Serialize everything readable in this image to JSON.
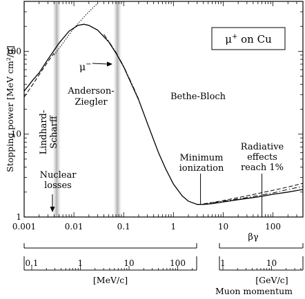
{
  "chart_data": {
    "type": "line",
    "xscale": "log",
    "yscale": "log",
    "xlim": [
      0.001,
      400
    ],
    "ylim": [
      1,
      400
    ],
    "ylabel": "Stopping power [MeV cm²/g]",
    "xlabel": "βγ",
    "x_ticks": [
      {
        "v": 0.001,
        "label": "0.001"
      },
      {
        "v": 0.01,
        "label": "0.01"
      },
      {
        "v": 0.1,
        "label": "0.1"
      },
      {
        "v": 1,
        "label": "1"
      },
      {
        "v": 10,
        "label": "10"
      },
      {
        "v": 100,
        "label": "100"
      }
    ],
    "y_ticks": [
      {
        "v": 1,
        "label": "1"
      },
      {
        "v": 10,
        "label": "10"
      },
      {
        "v": 100,
        "label": "100"
      }
    ],
    "legend_box": {
      "main": "μ",
      "sup": "+",
      "rest": " on Cu"
    },
    "series": [
      {
        "name": "μ+",
        "style": "solid",
        "points": [
          [
            0.001,
            33
          ],
          [
            0.0015,
            45
          ],
          [
            0.002,
            55
          ],
          [
            0.003,
            80
          ],
          [
            0.005,
            125
          ],
          [
            0.008,
            175
          ],
          [
            0.012,
            205
          ],
          [
            0.016,
            212
          ],
          [
            0.02,
            205
          ],
          [
            0.03,
            180
          ],
          [
            0.05,
            130
          ],
          [
            0.07,
            95
          ],
          [
            0.1,
            65
          ],
          [
            0.15,
            38
          ],
          [
            0.2,
            26
          ],
          [
            0.3,
            13.5
          ],
          [
            0.5,
            6
          ],
          [
            0.7,
            3.8
          ],
          [
            1,
            2.5
          ],
          [
            1.5,
            1.8
          ],
          [
            2,
            1.55
          ],
          [
            3,
            1.42
          ],
          [
            4,
            1.42
          ],
          [
            6,
            1.45
          ],
          [
            10,
            1.52
          ],
          [
            20,
            1.62
          ],
          [
            50,
            1.75
          ],
          [
            100,
            1.88
          ],
          [
            200,
            2.0
          ],
          [
            400,
            2.15
          ]
        ]
      },
      {
        "name": "μ-",
        "style": "dashdot",
        "points": [
          [
            0.04,
            160
          ],
          [
            0.05,
            132
          ],
          [
            0.07,
            97
          ],
          [
            0.1,
            66
          ],
          [
            0.15,
            39
          ],
          [
            0.2,
            26.5
          ]
        ]
      },
      {
        "name": "Lindhard-Scharff",
        "style": "dashed",
        "points": [
          [
            0.001,
            28
          ],
          [
            0.0015,
            40
          ],
          [
            0.002,
            52
          ],
          [
            0.003,
            75
          ],
          [
            0.004,
            95
          ]
        ]
      },
      {
        "name": "radiative-dashdot",
        "style": "dashdot",
        "points": [
          [
            4,
            1.43
          ],
          [
            10,
            1.55
          ],
          [
            30,
            1.72
          ],
          [
            100,
            1.95
          ],
          [
            200,
            2.15
          ],
          [
            400,
            2.35
          ]
        ]
      },
      {
        "name": "radiative-dashed",
        "style": "dashed",
        "points": [
          [
            4,
            1.44
          ],
          [
            10,
            1.58
          ],
          [
            30,
            1.8
          ],
          [
            100,
            2.1
          ],
          [
            200,
            2.3
          ],
          [
            400,
            2.55
          ]
        ]
      },
      {
        "name": "low-energy-dotted",
        "style": "dotted",
        "points": [
          [
            0.004,
            90
          ],
          [
            0.01,
            190
          ],
          [
            0.02,
            300
          ],
          [
            0.03,
            380
          ]
        ]
      }
    ],
    "shaded_bands": [
      0.0045,
      0.075
    ],
    "vertical_markers": [
      3.5,
      60
    ],
    "annotations": {
      "anderson": [
        "Anderson-",
        "Ziegler"
      ],
      "bethe": "Bethe-Bloch",
      "lindhard": [
        "Lindhard-",
        "Scharff"
      ],
      "nuclear": [
        "Nuclear",
        "losses"
      ],
      "minimum": [
        "Minimum",
        "ionization"
      ],
      "radiative": [
        "Radiative",
        "effects",
        "reach 1%"
      ],
      "mu_minus": {
        "main": "μ",
        "sup": "−"
      }
    },
    "momentum_axes": {
      "mev": {
        "unit": "[MeV/c]",
        "ticks": [
          {
            "v": 0.1,
            "label": "0.1"
          },
          {
            "v": 1,
            "label": "1"
          },
          {
            "v": 10,
            "label": "10"
          },
          {
            "v": 100,
            "label": "100"
          }
        ]
      },
      "gev": {
        "unit": "[GeV/c]",
        "ticks": [
          {
            "v": 1,
            "label": "1"
          },
          {
            "v": 10,
            "label": "10"
          }
        ]
      },
      "title": "Muon momentum"
    }
  }
}
